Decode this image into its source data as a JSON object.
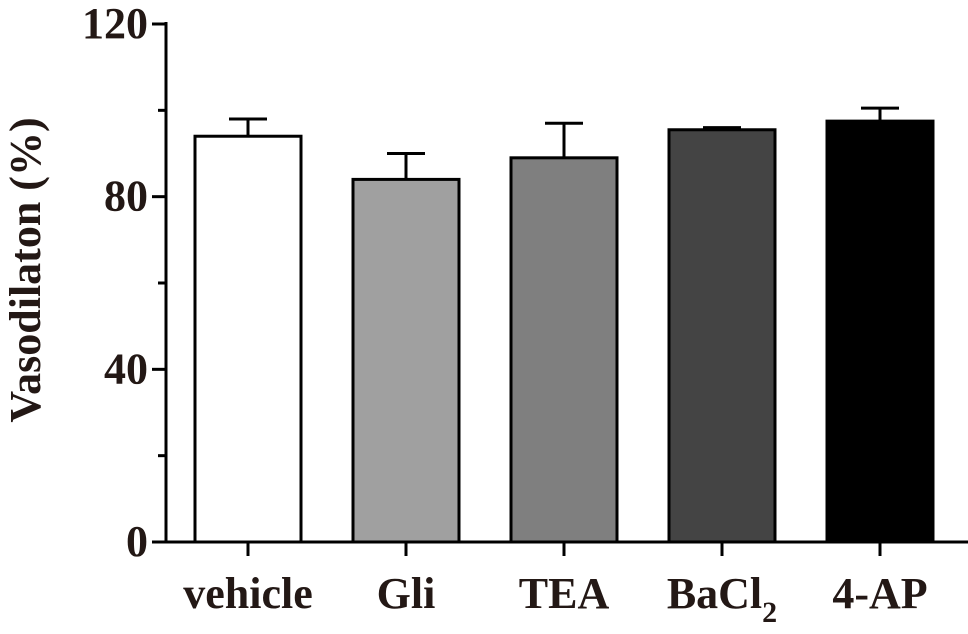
{
  "chart_data": {
    "type": "bar",
    "categories": [
      "vehicle",
      "Gli",
      "TEA",
      "BaCl",
      "4-AP"
    ],
    "category_subscripts": [
      "",
      "",
      "",
      "2",
      ""
    ],
    "values": [
      94,
      84,
      89,
      95.5,
      97.5
    ],
    "errors": [
      4,
      6,
      8,
      0.5,
      3
    ],
    "colors": [
      "#ffffff",
      "#a0a0a0",
      "#7f7f7f",
      "#444444",
      "#000000"
    ],
    "ylabel": "Vasodilaton (%)",
    "ylim": [
      0,
      120
    ],
    "yticks": [
      0,
      40,
      80,
      120
    ],
    "ytick_labels": [
      "0",
      "40",
      "80",
      "120"
    ],
    "grid": false,
    "legend": "none"
  }
}
